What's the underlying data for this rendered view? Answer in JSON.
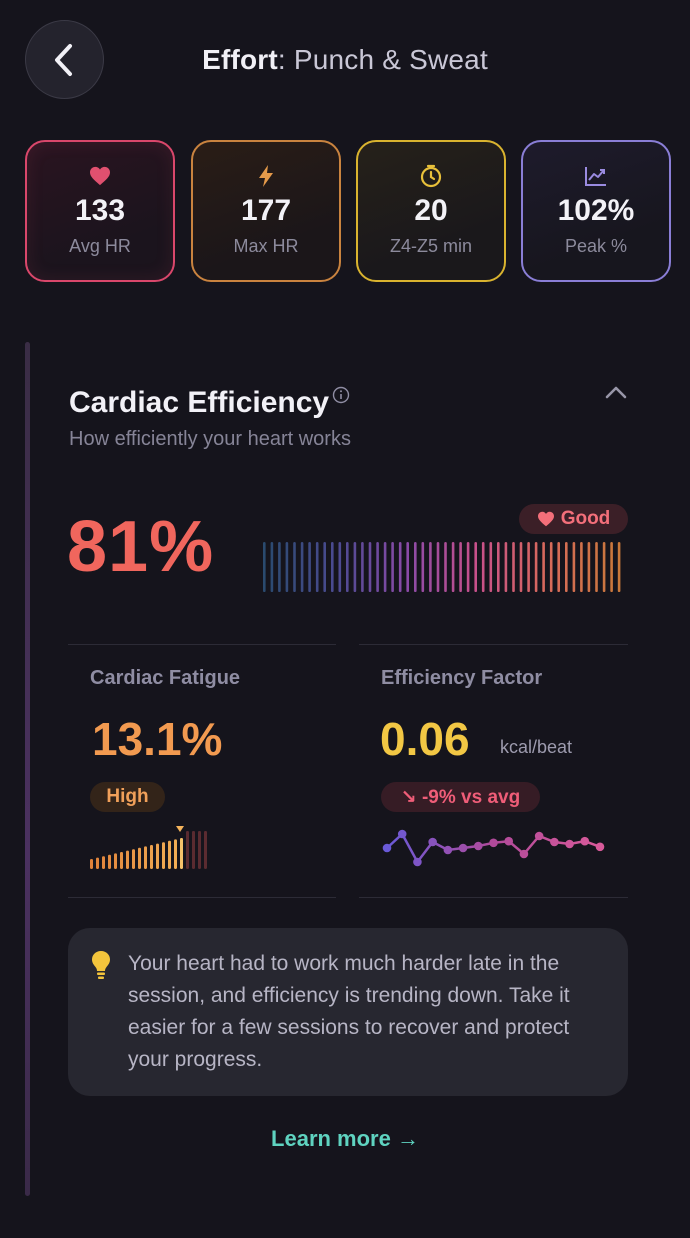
{
  "header": {
    "title_prefix": "Effort",
    "title_suffix": ": Punch & Sweat",
    "back_icon": "chevron-left-icon"
  },
  "stats": [
    {
      "value": "133",
      "label": "Avg HR",
      "icon": "heart-icon",
      "color": "#e0506f"
    },
    {
      "value": "177",
      "label": "Max HR",
      "icon": "lightning-icon",
      "color": "#e59a4a"
    },
    {
      "value": "20",
      "label": "Z4-Z5 min",
      "icon": "timer-icon",
      "color": "#e8c03a"
    },
    {
      "value": "102%",
      "label": "Peak %",
      "icon": "trend-chart-icon",
      "color": "#9a8be0"
    }
  ],
  "card": {
    "title": "Cardiac Efficiency",
    "subtitle": "How efficiently your heart works",
    "score": "81%",
    "badge": "Good",
    "colors": {
      "score": "#f0665d",
      "badge_text": "#f36f7a",
      "badge_bg": "#3b1f27"
    }
  },
  "fatigue": {
    "label": "Cardiac Fatigue",
    "value": "13.1%",
    "badge": "High",
    "color": "#f29a50"
  },
  "efficiency_factor": {
    "label": "Efficiency Factor",
    "value": "0.06",
    "unit": "kcal/beat",
    "change": "↘ -9% vs avg",
    "color": "#f2c744",
    "trend": [
      0.55,
      0.9,
      0.2,
      0.7,
      0.5,
      0.55,
      0.6,
      0.68,
      0.72,
      0.4,
      0.85,
      0.7,
      0.65,
      0.72,
      0.58
    ]
  },
  "tip": {
    "icon": "lightbulb-icon",
    "text": "Your heart had to work much harder late in the session, and efficiency is trending down. Take it easier for a few sessions to recover and protect your progress."
  },
  "learn_more": "Learn more →"
}
